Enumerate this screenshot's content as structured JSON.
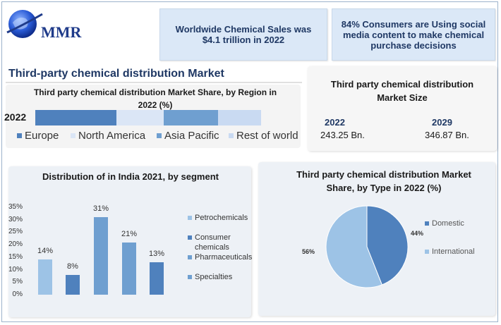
{
  "header": {
    "logo_text": "MMR",
    "banner_left": "Worldwide Chemical Sales was $4.1 trillion in 2022",
    "banner_right": "84% Consumers are Using  social media content to make chemical purchase decisions"
  },
  "main_title": "Third-party chemical distribution Market",
  "colors": {
    "dark_blue": "#4f81bd",
    "mid_blue": "#6f9fd0",
    "light_blue": "#9dc3e6",
    "pale_blue": "#c9daf2",
    "title_navy": "#1f3864"
  },
  "market_size": {
    "title": "Third party chemical distribution Market Size",
    "year1": "2022",
    "value1": "243.25 Bn.",
    "year2": "2029",
    "value2": "346.87 Bn."
  },
  "chart_data": [
    {
      "type": "bar",
      "orientation": "horizontal-stacked",
      "title": "Third party chemical distribution Market Share, by Region in 2022 (%)",
      "categories": [
        "2022"
      ],
      "series": [
        {
          "name": "Europe",
          "values": [
            36
          ]
        },
        {
          "name": "North America",
          "values": [
            21
          ]
        },
        {
          "name": "Asia Pacific",
          "values": [
            24
          ]
        },
        {
          "name": "Rest of world",
          "values": [
            19
          ]
        }
      ],
      "legend": "bottom"
    },
    {
      "type": "bar",
      "title": "Distribution of in India 2021, by segment",
      "categories": [
        "Petrochemicals",
        "Consumer chemicals",
        "Pharmaceuticals",
        "Specialties",
        ""
      ],
      "values": [
        14,
        8,
        31,
        21,
        13
      ],
      "value_labels": [
        "14%",
        "8%",
        "31%",
        "21%",
        "13%"
      ],
      "yticks": [
        "0%",
        "5%",
        "10%",
        "15%",
        "20%",
        "25%",
        "30%",
        "35%"
      ],
      "ylim": [
        0,
        35
      ],
      "legend": "right",
      "legend_labels": [
        "Petrochemicals",
        "Consumer chemicals",
        "Pharmaceuticals",
        "Specialties"
      ]
    },
    {
      "type": "pie",
      "title": "Third party chemical distribution Market Share, by Type  in 2022 (%)",
      "labels": [
        "Domestic",
        "International"
      ],
      "values": [
        44,
        56
      ],
      "value_labels": [
        "44%",
        "56%"
      ],
      "legend": "right"
    }
  ]
}
